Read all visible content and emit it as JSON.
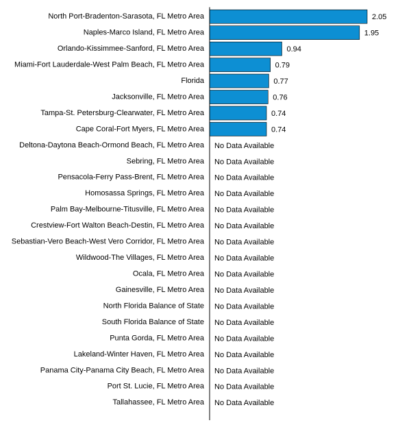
{
  "chart_data": {
    "type": "bar",
    "orientation": "horizontal",
    "categories": [
      "North Port-Bradenton-Sarasota, FL Metro Area",
      "Naples-Marco Island, FL Metro Area",
      "Orlando-Kissimmee-Sanford, FL Metro Area",
      "Miami-Fort Lauderdale-West Palm Beach, FL Metro Area",
      "Florida",
      "Jacksonville, FL Metro Area",
      "Tampa-St. Petersburg-Clearwater, FL Metro Area",
      "Cape Coral-Fort Myers, FL Metro Area",
      "Deltona-Daytona Beach-Ormond Beach, FL Metro Area",
      "Sebring, FL Metro Area",
      "Pensacola-Ferry Pass-Brent, FL Metro Area",
      "Homosassa Springs, FL Metro Area",
      "Palm Bay-Melbourne-Titusville, FL Metro Area",
      "Crestview-Fort Walton Beach-Destin, FL Metro Area",
      "Sebastian-Vero Beach-West Vero Corridor, FL Metro Area",
      "Wildwood-The Villages, FL Metro Area",
      "Ocala, FL Metro Area",
      "Gainesville, FL Metro Area",
      "North Florida Balance of State",
      "South Florida Balance of State",
      "Punta Gorda, FL Metro Area",
      "Lakeland-Winter Haven, FL Metro Area",
      "Panama City-Panama City Beach, FL Metro Area",
      "Port St. Lucie, FL Metro Area",
      "Tallahassee, FL Metro Area"
    ],
    "values": [
      2.05,
      1.95,
      0.94,
      0.79,
      0.77,
      0.76,
      0.74,
      0.74,
      null,
      null,
      null,
      null,
      null,
      null,
      null,
      null,
      null,
      null,
      null,
      null,
      null,
      null,
      null,
      null,
      null
    ],
    "value_labels": [
      "2.05",
      "1.95",
      "0.94",
      "0.79",
      "0.77",
      "0.76",
      "0.74",
      "0.74",
      "No Data Available",
      "No Data Available",
      "No Data Available",
      "No Data Available",
      "No Data Available",
      "No Data Available",
      "No Data Available",
      "No Data Available",
      "No Data Available",
      "No Data Available",
      "No Data Available",
      "No Data Available",
      "No Data Available",
      "No Data Available",
      "No Data Available",
      "No Data Available",
      "No Data Available"
    ],
    "color": "#0d8fd3"
  }
}
